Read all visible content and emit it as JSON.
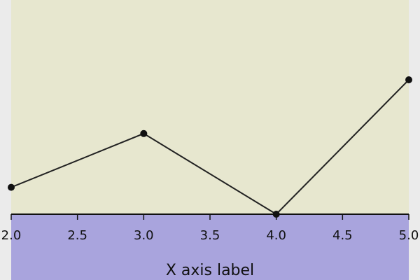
{
  "chart_data": {
    "type": "line",
    "title": "",
    "xlabel": "X axis label",
    "ylabel": "",
    "xlim": [
      2.0,
      5.0
    ],
    "ylim": [
      0,
      8
    ],
    "xticks": [
      "2.0",
      "2.5",
      "3.0",
      "3.5",
      "4.0",
      "4.5",
      "5.0"
    ],
    "grid": false,
    "series": [
      {
        "x": [
          2.0,
          3.0,
          4.0,
          5.0
        ],
        "y": [
          1,
          3,
          0,
          5
        ]
      }
    ]
  },
  "colors": {
    "page_background": "#ebebeb",
    "plot_background": "#e7e7cf",
    "axis_panel_background": "#a9a4dd",
    "line": "#222222",
    "marker": "#111111",
    "axis": "#111111",
    "text": "#111111"
  }
}
